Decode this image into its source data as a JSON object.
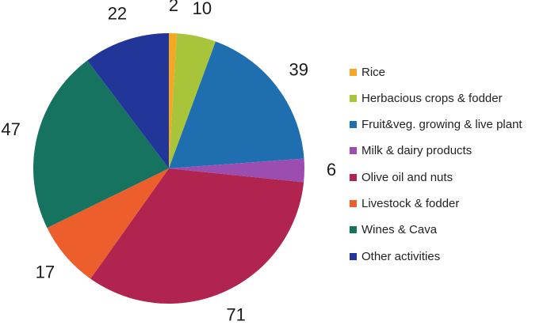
{
  "chart_data": {
    "type": "pie",
    "title": "",
    "legend_position": "right",
    "slices": [
      {
        "label": "Rice",
        "value": 2,
        "color": "#f5a623"
      },
      {
        "label": "Herbacious crops & fodder",
        "value": 10,
        "color": "#a8c43a"
      },
      {
        "label": "Fruit&veg. growing & live plant",
        "value": 39,
        "color": "#1f6fb0"
      },
      {
        "label": "Milk & dairy products",
        "value": 6,
        "color": "#9b4db0"
      },
      {
        "label": "Olive oil and nuts",
        "value": 71,
        "color": "#b0244f"
      },
      {
        "label": "Livestock & fodder",
        "value": 17,
        "color": "#ec5f2c"
      },
      {
        "label": "Wines & Cava",
        "value": 47,
        "color": "#16735f"
      },
      {
        "label": "Other activities",
        "value": 22,
        "color": "#22369a"
      }
    ]
  }
}
